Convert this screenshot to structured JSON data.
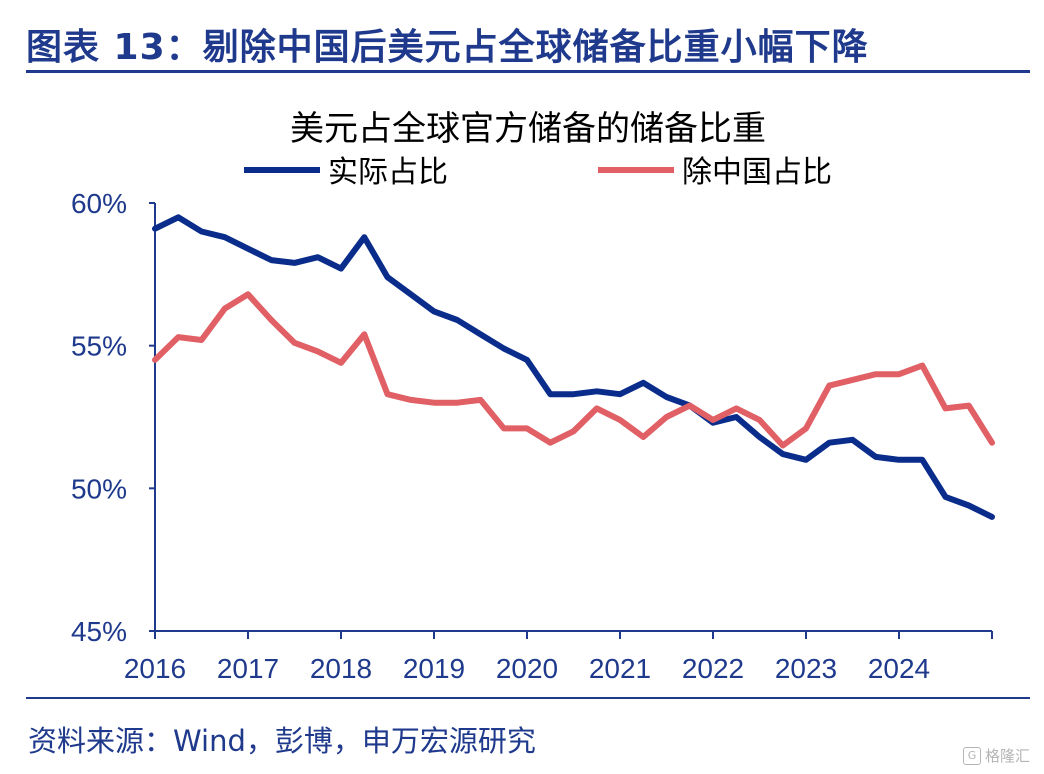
{
  "figure": {
    "title": "图表 13：剔除中国后美元占全球储备比重小幅下降",
    "source": "资料来源：Wind，彭博，申万宏源研究",
    "watermark": "格隆汇",
    "watermark_icon": "G"
  },
  "chart_data": {
    "type": "line",
    "title": "美元占全球官方储备的储备比重",
    "xlabel": "",
    "ylabel": "",
    "ylim": [
      45,
      60
    ],
    "xlim": [
      2016,
      2025
    ],
    "yticks": [
      45,
      50,
      55,
      60
    ],
    "ytick_labels": [
      "45%",
      "50%",
      "55%",
      "60%"
    ],
    "xticks": [
      2016,
      2017,
      2018,
      2019,
      2020,
      2021,
      2022,
      2023,
      2024
    ],
    "xtick_labels": [
      "2016",
      "2017",
      "2018",
      "2019",
      "2020",
      "2021",
      "2022",
      "2023",
      "2024"
    ],
    "grid": false,
    "legend_position": "top",
    "series": [
      {
        "name": "实际占比",
        "color": "#0a2d8c",
        "x": [
          2016.0,
          2016.25,
          2016.5,
          2016.75,
          2017.0,
          2017.25,
          2017.5,
          2017.75,
          2018.0,
          2018.25,
          2018.5,
          2018.75,
          2019.0,
          2019.25,
          2019.5,
          2019.75,
          2020.0,
          2020.25,
          2020.5,
          2020.75,
          2021.0,
          2021.25,
          2021.5,
          2021.75,
          2022.0,
          2022.25,
          2022.5,
          2022.75,
          2023.0,
          2023.25,
          2023.5,
          2023.75,
          2024.0,
          2024.25,
          2024.5,
          2024.75,
          2025.0
        ],
        "values": [
          59.1,
          59.5,
          59.0,
          58.8,
          58.4,
          58.0,
          57.9,
          58.1,
          57.7,
          58.8,
          57.4,
          56.8,
          56.2,
          55.9,
          55.4,
          54.9,
          54.5,
          53.3,
          53.3,
          53.4,
          53.3,
          53.7,
          53.2,
          52.9,
          52.3,
          52.5,
          51.8,
          51.2,
          51.0,
          51.6,
          51.7,
          51.1,
          51.0,
          51.0,
          49.7,
          49.4,
          49.0
        ]
      },
      {
        "name": "除中国占比",
        "color": "#e06065",
        "x": [
          2016.0,
          2016.25,
          2016.5,
          2016.75,
          2017.0,
          2017.25,
          2017.5,
          2017.75,
          2018.0,
          2018.25,
          2018.5,
          2018.75,
          2019.0,
          2019.25,
          2019.5,
          2019.75,
          2020.0,
          2020.25,
          2020.5,
          2020.75,
          2021.0,
          2021.25,
          2021.5,
          2021.75,
          2022.0,
          2022.25,
          2022.5,
          2022.75,
          2023.0,
          2023.25,
          2023.5,
          2023.75,
          2024.0,
          2024.25,
          2024.5,
          2024.75,
          2025.0
        ],
        "values": [
          54.5,
          55.3,
          55.2,
          56.3,
          56.8,
          55.9,
          55.1,
          54.8,
          54.4,
          55.4,
          53.3,
          53.1,
          53.0,
          53.0,
          53.1,
          52.1,
          52.1,
          51.6,
          52.0,
          52.8,
          52.4,
          51.8,
          52.5,
          52.9,
          52.4,
          52.8,
          52.4,
          51.5,
          52.1,
          53.6,
          53.8,
          54.0,
          54.0,
          54.3,
          52.8,
          52.9,
          51.6
        ]
      }
    ]
  }
}
